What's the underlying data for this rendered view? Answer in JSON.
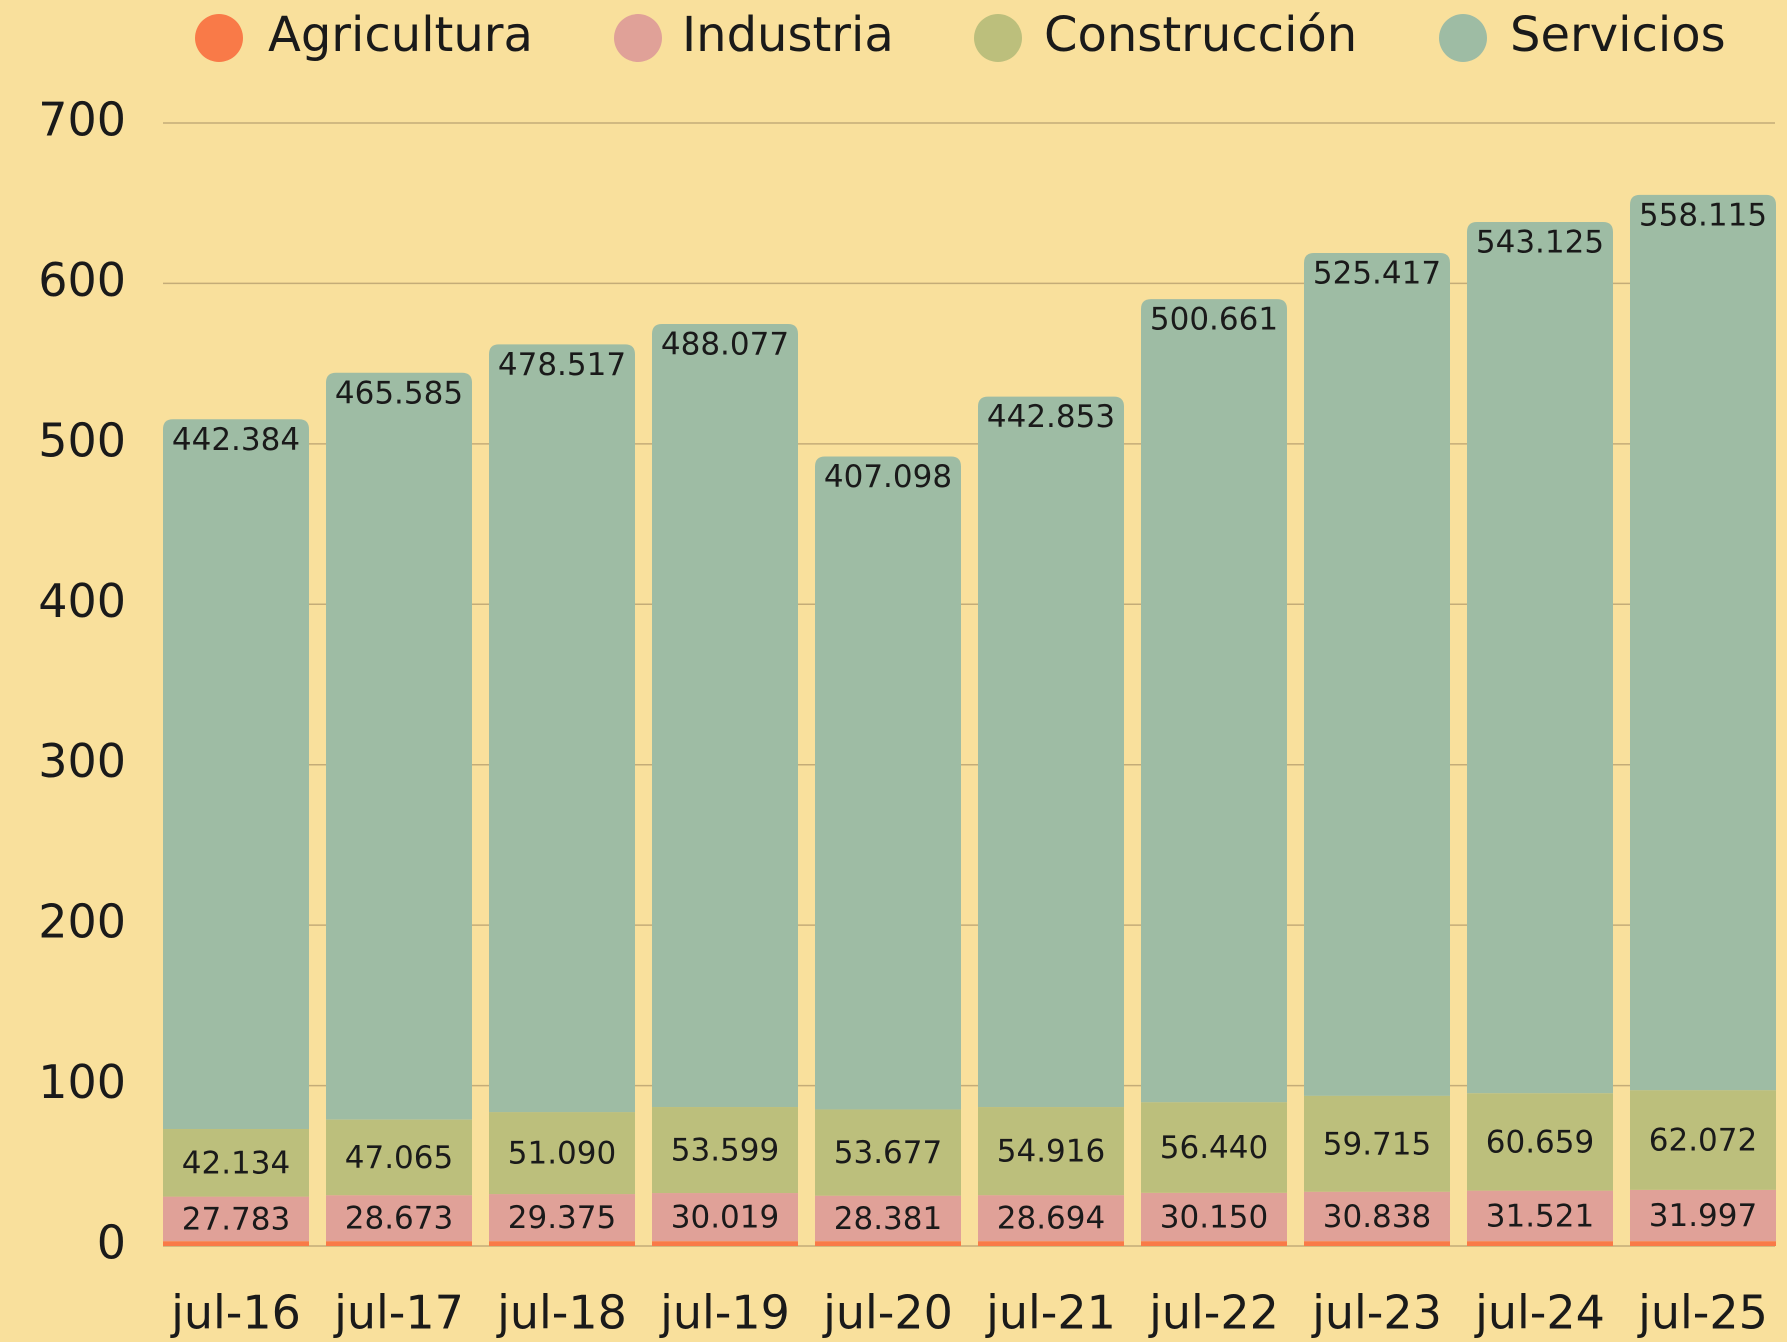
{
  "chart_data": {
    "type": "stacked_bar",
    "categories": [
      "jul-16",
      "jul-17",
      "jul-18",
      "jul-19",
      "jul-20",
      "jul-21",
      "jul-22",
      "jul-23",
      "jul-24",
      "jul-25"
    ],
    "series": [
      {
        "name": "Agricultura",
        "color": "#f97a48",
        "values": [
          3,
          3,
          3,
          3,
          3,
          3,
          3,
          3,
          3,
          3
        ]
      },
      {
        "name": "Industria",
        "color": "#e0a198",
        "values": [
          27.783,
          28.673,
          29.375,
          30.019,
          28.381,
          28.694,
          30.15,
          30.838,
          31.521,
          31.997
        ],
        "value_labels": [
          "27.783",
          "28.673",
          "29.375",
          "30.019",
          "28.381",
          "28.694",
          "30.150",
          "30.838",
          "31.521",
          "31.997"
        ]
      },
      {
        "name": "Construcción",
        "color": "#bcbf7c",
        "values": [
          42.134,
          47.065,
          51.09,
          53.599,
          53.677,
          54.916,
          56.44,
          59.715,
          60.659,
          62.072
        ],
        "value_labels": [
          "42.134",
          "47.065",
          "51.090",
          "53.599",
          "53.677",
          "54.916",
          "56.440",
          "59.715",
          "60.659",
          "62.072"
        ]
      },
      {
        "name": "Servicios",
        "color": "#9ebca4",
        "values": [
          442.384,
          465.585,
          478.517,
          488.077,
          407.098,
          442.853,
          500.661,
          525.417,
          543.125,
          558.115
        ],
        "value_labels": [
          "442.384",
          "465.585",
          "478.517",
          "488.077",
          "407.098",
          "442.853",
          "500.661",
          "525.417",
          "543.125",
          "558.115"
        ]
      }
    ],
    "ylim": [
      0,
      700
    ],
    "yticks": [
      0,
      100,
      200,
      300,
      400,
      500,
      600,
      700
    ],
    "grid": true,
    "legend": "top"
  }
}
